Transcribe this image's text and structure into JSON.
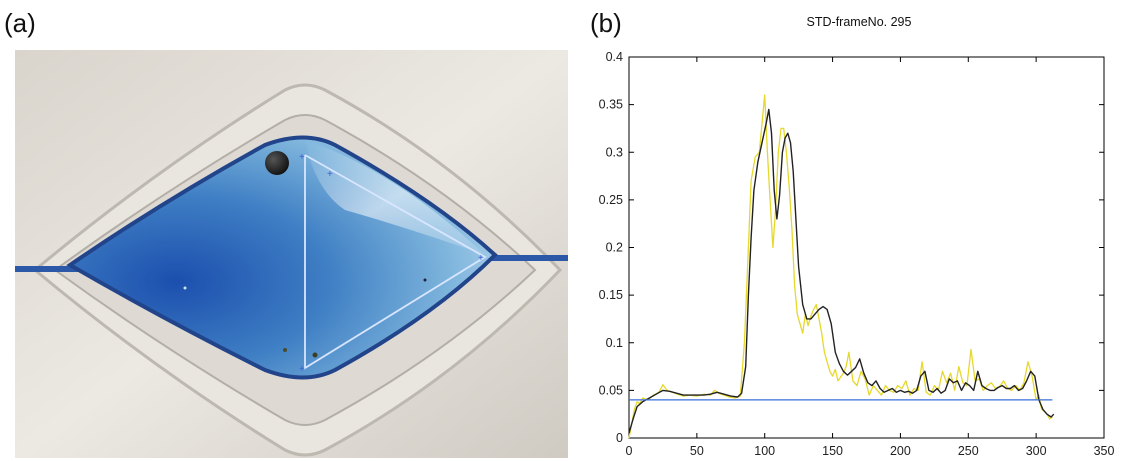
{
  "panels": {
    "a": "(a)",
    "b": "(b)"
  },
  "chart_data": {
    "type": "line",
    "title": "STD-frameNo. 295",
    "xlim": [
      0,
      350
    ],
    "ylim": [
      0,
      0.4
    ],
    "xticks": [
      0,
      50,
      100,
      150,
      200,
      250,
      300,
      350
    ],
    "yticks": [
      0,
      0.05,
      0.1,
      0.15,
      0.2,
      0.25,
      0.3,
      0.35,
      0.4
    ],
    "ytick_labels": [
      "0",
      "0.05",
      "0.1",
      "0.15",
      "0.2",
      "0.25",
      "0.3",
      "0.35",
      "0.4"
    ],
    "grid": false,
    "colors": {
      "raw": "#e6d82a",
      "smooth": "#222222",
      "threshold": "#3a6fd8"
    },
    "series": [
      {
        "key": "raw",
        "x": [
          0,
          2,
          4,
          6,
          8,
          10,
          14,
          18,
          22,
          25,
          28,
          32,
          36,
          40,
          45,
          50,
          55,
          60,
          63,
          66,
          70,
          74,
          78,
          82,
          85,
          88,
          90,
          93,
          96,
          98,
          100,
          102,
          104,
          106,
          108,
          110,
          112,
          114,
          116,
          118,
          120,
          122,
          124,
          126,
          128,
          130,
          132,
          134,
          136,
          138,
          140,
          142,
          144,
          146,
          148,
          150,
          152,
          154,
          156,
          158,
          160,
          162,
          165,
          168,
          171,
          174,
          177,
          180,
          183,
          186,
          189,
          192,
          195,
          198,
          201,
          204,
          207,
          210,
          213,
          216,
          219,
          222,
          225,
          228,
          231,
          234,
          237,
          240,
          243,
          246,
          249,
          252,
          255,
          258,
          261,
          264,
          267,
          270,
          273,
          276,
          279,
          282,
          285,
          288,
          291,
          294,
          297,
          300,
          302,
          304,
          306,
          308,
          310,
          312
        ],
        "y": [
          0.0,
          0.015,
          0.03,
          0.038,
          0.036,
          0.042,
          0.04,
          0.045,
          0.048,
          0.056,
          0.05,
          0.048,
          0.046,
          0.044,
          0.045,
          0.044,
          0.046,
          0.045,
          0.05,
          0.047,
          0.045,
          0.043,
          0.042,
          0.044,
          0.1,
          0.2,
          0.27,
          0.295,
          0.3,
          0.33,
          0.36,
          0.3,
          0.25,
          0.2,
          0.24,
          0.3,
          0.325,
          0.325,
          0.3,
          0.265,
          0.22,
          0.16,
          0.13,
          0.12,
          0.11,
          0.13,
          0.118,
          0.128,
          0.135,
          0.14,
          0.125,
          0.11,
          0.09,
          0.08,
          0.07,
          0.065,
          0.072,
          0.06,
          0.064,
          0.068,
          0.075,
          0.09,
          0.06,
          0.055,
          0.07,
          0.062,
          0.045,
          0.055,
          0.05,
          0.045,
          0.055,
          0.05,
          0.048,
          0.055,
          0.052,
          0.06,
          0.045,
          0.052,
          0.05,
          0.08,
          0.048,
          0.045,
          0.055,
          0.05,
          0.07,
          0.058,
          0.068,
          0.05,
          0.075,
          0.058,
          0.055,
          0.093,
          0.06,
          0.062,
          0.05,
          0.055,
          0.058,
          0.052,
          0.054,
          0.06,
          0.052,
          0.05,
          0.055,
          0.05,
          0.058,
          0.08,
          0.065,
          0.04,
          0.045,
          0.03,
          0.028,
          0.025,
          0.02,
          0.022
        ]
      },
      {
        "key": "smooth",
        "x": [
          0,
          3,
          6,
          10,
          15,
          20,
          25,
          30,
          35,
          40,
          45,
          50,
          55,
          60,
          65,
          70,
          75,
          80,
          83,
          86,
          88,
          90,
          92,
          95,
          98,
          101,
          103,
          105,
          107,
          109,
          111,
          113,
          115,
          117,
          119,
          121,
          123,
          125,
          128,
          131,
          134,
          137,
          140,
          143,
          146,
          149,
          152,
          155,
          158,
          161,
          164,
          167,
          170,
          173,
          176,
          179,
          182,
          185,
          188,
          191,
          194,
          197,
          200,
          203,
          206,
          209,
          212,
          215,
          218,
          221,
          224,
          227,
          230,
          233,
          236,
          239,
          242,
          245,
          248,
          251,
          254,
          257,
          260,
          263,
          266,
          269,
          272,
          275,
          278,
          281,
          284,
          287,
          290,
          293,
          296,
          299,
          302,
          305,
          308,
          311,
          313
        ],
        "y": [
          0.005,
          0.02,
          0.033,
          0.038,
          0.042,
          0.046,
          0.05,
          0.049,
          0.047,
          0.045,
          0.045,
          0.045,
          0.045,
          0.046,
          0.048,
          0.046,
          0.044,
          0.043,
          0.047,
          0.075,
          0.15,
          0.21,
          0.26,
          0.29,
          0.31,
          0.33,
          0.345,
          0.32,
          0.26,
          0.23,
          0.255,
          0.3,
          0.315,
          0.32,
          0.31,
          0.28,
          0.23,
          0.18,
          0.14,
          0.125,
          0.125,
          0.13,
          0.135,
          0.138,
          0.135,
          0.12,
          0.09,
          0.078,
          0.07,
          0.066,
          0.07,
          0.074,
          0.083,
          0.068,
          0.058,
          0.055,
          0.06,
          0.052,
          0.048,
          0.05,
          0.052,
          0.048,
          0.05,
          0.048,
          0.049,
          0.047,
          0.05,
          0.065,
          0.07,
          0.05,
          0.048,
          0.052,
          0.047,
          0.05,
          0.062,
          0.058,
          0.06,
          0.05,
          0.058,
          0.055,
          0.05,
          0.07,
          0.055,
          0.052,
          0.05,
          0.05,
          0.053,
          0.055,
          0.052,
          0.052,
          0.055,
          0.05,
          0.052,
          0.06,
          0.07,
          0.065,
          0.04,
          0.03,
          0.025,
          0.022,
          0.025
        ]
      },
      {
        "key": "threshold",
        "x": [
          0,
          312
        ],
        "y": [
          0.04,
          0.04
        ]
      }
    ]
  }
}
